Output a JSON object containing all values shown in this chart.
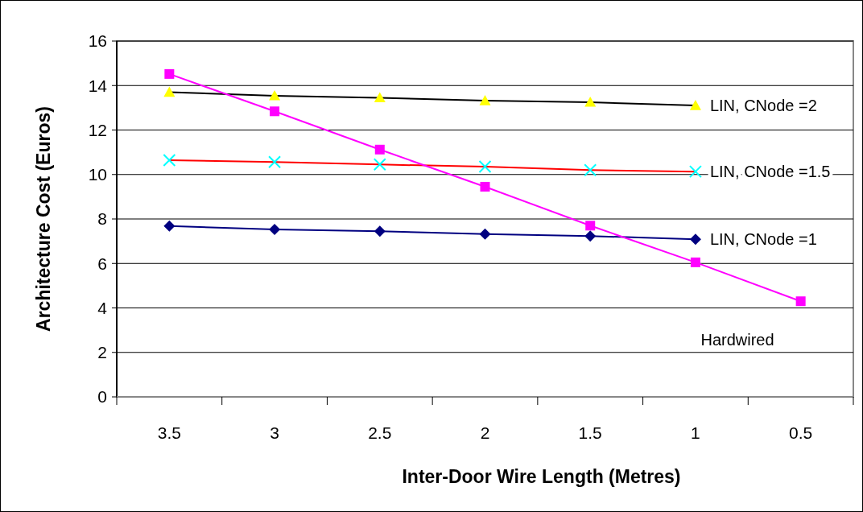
{
  "chart_data": {
    "type": "line",
    "xlabel": "Inter-Door Wire Length (Metres)",
    "ylabel": "Architecture Cost (Euros)",
    "categories": [
      "3.5",
      "3",
      "2.5",
      "2",
      "1.5",
      "1",
      "0.5"
    ],
    "ylim": [
      0,
      16
    ],
    "yticks": [
      0,
      2,
      4,
      6,
      8,
      10,
      12,
      14,
      16
    ],
    "grid": "y",
    "series": [
      {
        "name": "LIN, CNode =2",
        "color": "#000000",
        "colors": [
          "#ffff00",
          "#ffff00",
          "#ffff00",
          "#ffff00",
          "#ffff00",
          "#ffff00",
          null
        ],
        "marker": "triangle",
        "values": [
          13.7,
          13.54,
          13.45,
          13.32,
          13.25,
          13.1,
          null
        ]
      },
      {
        "name": "LIN, CNode =1.5",
        "color": "#ff0000",
        "colors": [
          "#00ffff",
          "#00ffff",
          "#00ffff",
          "#00ffff",
          "#00ffff",
          "#00ffff",
          null
        ],
        "marker": "cross",
        "values": [
          10.64,
          10.56,
          10.45,
          10.35,
          10.2,
          10.13,
          null
        ]
      },
      {
        "name": "LIN, CNode =1",
        "color": "#000080",
        "marker": "diamond",
        "values": [
          7.68,
          7.53,
          7.45,
          7.32,
          7.23,
          7.09,
          null
        ]
      },
      {
        "name": "Hardwired",
        "color": "#ff00ff",
        "marker": "square",
        "values": [
          14.52,
          12.84,
          11.12,
          9.45,
          7.7,
          6.05,
          4.3
        ]
      }
    ]
  }
}
